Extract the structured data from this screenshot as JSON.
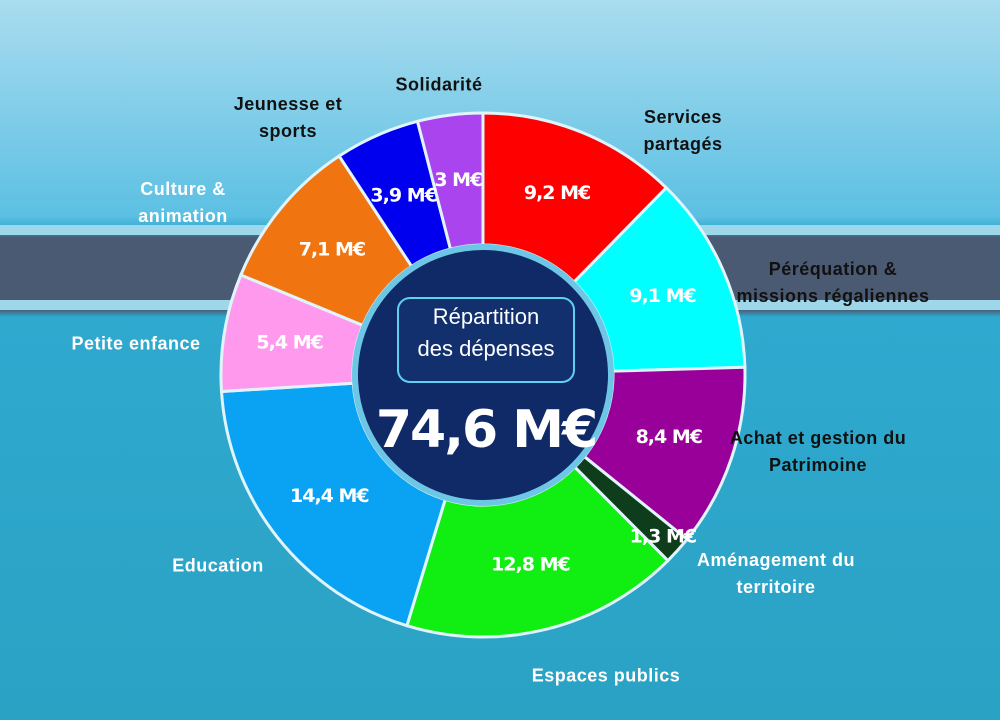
{
  "chart_data": {
    "type": "pie",
    "title": "Répartition des dépenses",
    "total": {
      "value": 74.6,
      "label": "74,6 M€"
    },
    "categories": [
      "Services partagés",
      "Péréquation & missions régaliennes",
      "Achat et gestion du Patrimoine",
      "Aménagement du territoire",
      "Espaces publics",
      "Education",
      "Petite enfance",
      "Culture & animation",
      "Jeunesse et sports",
      "Solidarité"
    ],
    "values": [
      9.2,
      9.1,
      8.4,
      1.3,
      12.8,
      14.4,
      5.4,
      7.1,
      3.9,
      3
    ],
    "value_labels": [
      "9,2 M€",
      "9,1 M€",
      "8,4 M€",
      "1,3 M€",
      "12,8  M€",
      "14,4 M€",
      "5,4 M€",
      "7,1  M€",
      "3,9 M€",
      "3 M€"
    ],
    "colors": [
      "#ff0000",
      "#00ffff",
      "#990099",
      "#0d3d1a",
      "#11ee11",
      "#0aa2f2",
      "#ff99ee",
      "#f07410",
      "#0000ee",
      "#aa44ee"
    ]
  }
}
